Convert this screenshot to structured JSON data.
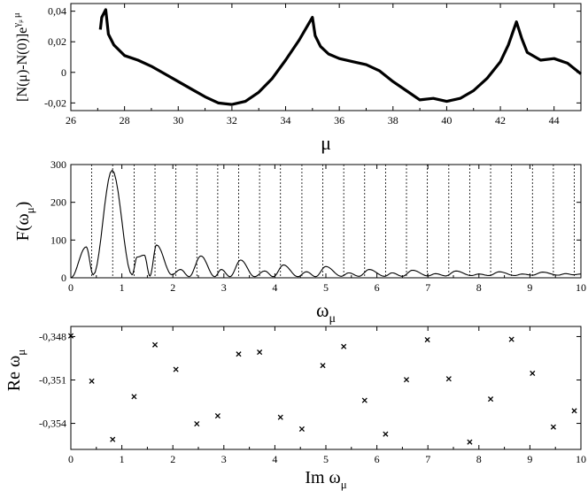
{
  "chart_data": [
    {
      "type": "line",
      "xlabel": "μ",
      "ylabel": "[N(μ)-N(0)]e",
      "ylabel_superscript": "γ",
      "ylabel_superscript_sub": "μ",
      "ylabel_superscript_tail": "μ",
      "xlim": [
        26,
        45
      ],
      "ylim": [
        -0.025,
        0.045
      ],
      "xticks": [
        26,
        28,
        30,
        32,
        34,
        36,
        38,
        40,
        42,
        44
      ],
      "yticks": [
        -0.02,
        0,
        0.02,
        0.04
      ],
      "ytick_labels": [
        "-0,02",
        "0",
        "0,02",
        "0,04"
      ],
      "series": [
        {
          "x": [
            27.1,
            27.15,
            27.3,
            27.4,
            27.6,
            28.0,
            28.5,
            29.0,
            29.5,
            30.0,
            30.5,
            31.0,
            31.5,
            32.0,
            32.5,
            33.0,
            33.5,
            34.0,
            34.5,
            35.0,
            35.1,
            35.3,
            35.6,
            36.0,
            36.5,
            37.0,
            37.5,
            38.0,
            38.5,
            39.0,
            39.5,
            40.0,
            40.5,
            41.0,
            41.5,
            42.0,
            42.3,
            42.6,
            42.8,
            43.0,
            43.5,
            44.0,
            44.5,
            45.0
          ],
          "y": [
            0.028,
            0.036,
            0.041,
            0.025,
            0.018,
            0.011,
            0.008,
            0.004,
            -0.001,
            -0.006,
            -0.011,
            -0.016,
            -0.02,
            -0.021,
            -0.019,
            -0.013,
            -0.004,
            0.008,
            0.021,
            0.036,
            0.024,
            0.017,
            0.012,
            0.009,
            0.007,
            0.005,
            0.001,
            -0.006,
            -0.012,
            -0.018,
            -0.017,
            -0.019,
            -0.017,
            -0.012,
            -0.004,
            0.007,
            0.018,
            0.033,
            0.022,
            0.013,
            0.008,
            0.009,
            0.006,
            -0.001
          ]
        }
      ]
    },
    {
      "type": "line",
      "xlabel": "ω",
      "xlabel_sub": "μ",
      "ylabel": "F(ω",
      "ylabel_sub": "μ",
      "ylabel_tail": ")",
      "xlim": [
        0,
        10
      ],
      "ylim": [
        0,
        300
      ],
      "xticks": [
        0,
        1,
        2,
        3,
        4,
        5,
        6,
        7,
        8,
        9,
        10
      ],
      "yticks": [
        0,
        100,
        200,
        300
      ],
      "vlines": [
        0.41,
        0.82,
        1.24,
        1.65,
        2.06,
        2.47,
        2.88,
        3.29,
        3.7,
        4.11,
        4.53,
        4.94,
        5.35,
        5.76,
        6.17,
        6.58,
        6.99,
        7.41,
        7.82,
        8.23,
        8.64,
        9.05,
        9.46,
        9.87
      ],
      "peaks": [
        {
          "x": 0.0,
          "y": 0
        },
        {
          "x": 0.3,
          "y": 82
        },
        {
          "x": 0.44,
          "y": 8
        },
        {
          "x": 0.81,
          "y": 285
        },
        {
          "x": 1.2,
          "y": 8
        },
        {
          "x": 1.3,
          "y": 55
        },
        {
          "x": 1.44,
          "y": 60
        },
        {
          "x": 1.55,
          "y": 5
        },
        {
          "x": 1.68,
          "y": 87
        },
        {
          "x": 1.98,
          "y": 8
        },
        {
          "x": 2.15,
          "y": 22
        },
        {
          "x": 2.32,
          "y": 3
        },
        {
          "x": 2.55,
          "y": 58
        },
        {
          "x": 2.82,
          "y": 3
        },
        {
          "x": 2.95,
          "y": 22
        },
        {
          "x": 3.12,
          "y": 3
        },
        {
          "x": 3.33,
          "y": 47
        },
        {
          "x": 3.6,
          "y": 3
        },
        {
          "x": 3.8,
          "y": 18
        },
        {
          "x": 3.97,
          "y": 3
        },
        {
          "x": 4.17,
          "y": 34
        },
        {
          "x": 4.45,
          "y": 3
        },
        {
          "x": 4.62,
          "y": 16
        },
        {
          "x": 4.8,
          "y": 3
        },
        {
          "x": 5.0,
          "y": 30
        },
        {
          "x": 5.3,
          "y": 4
        },
        {
          "x": 5.45,
          "y": 13
        },
        {
          "x": 5.65,
          "y": 4
        },
        {
          "x": 5.85,
          "y": 22
        },
        {
          "x": 6.15,
          "y": 4
        },
        {
          "x": 6.3,
          "y": 13
        },
        {
          "x": 6.5,
          "y": 4
        },
        {
          "x": 6.7,
          "y": 20
        },
        {
          "x": 7.0,
          "y": 5
        },
        {
          "x": 7.15,
          "y": 11
        },
        {
          "x": 7.35,
          "y": 5
        },
        {
          "x": 7.55,
          "y": 18
        },
        {
          "x": 7.85,
          "y": 6
        },
        {
          "x": 8.0,
          "y": 10
        },
        {
          "x": 8.2,
          "y": 6
        },
        {
          "x": 8.4,
          "y": 16
        },
        {
          "x": 8.7,
          "y": 6
        },
        {
          "x": 8.85,
          "y": 10
        },
        {
          "x": 9.05,
          "y": 7
        },
        {
          "x": 9.25,
          "y": 15
        },
        {
          "x": 9.55,
          "y": 7
        },
        {
          "x": 9.7,
          "y": 11
        },
        {
          "x": 9.85,
          "y": 8
        },
        {
          "x": 10.0,
          "y": 10
        }
      ]
    },
    {
      "type": "scatter",
      "xlabel": "Im ω",
      "xlabel_sub": "μ",
      "ylabel": "Re ω",
      "ylabel_sub": "μ",
      "xlim": [
        0,
        10
      ],
      "ylim": [
        -0.3558,
        -0.3473
      ],
      "xticks": [
        0,
        1,
        2,
        3,
        4,
        5,
        6,
        7,
        8,
        9,
        10
      ],
      "yticks": [
        -0.354,
        -0.351,
        -0.348
      ],
      "ytick_labels": [
        "-0,354",
        "-0,351",
        "-0,348"
      ],
      "x": [
        0.0,
        0.41,
        0.82,
        1.24,
        1.65,
        2.06,
        2.47,
        2.88,
        3.29,
        3.7,
        4.11,
        4.53,
        4.94,
        5.35,
        5.76,
        6.17,
        6.58,
        6.99,
        7.41,
        7.82,
        8.23,
        8.64,
        9.05,
        9.46,
        9.87
      ],
      "y": [
        -0.34795,
        -0.35108,
        -0.35511,
        -0.35215,
        -0.34857,
        -0.35027,
        -0.35403,
        -0.35348,
        -0.34921,
        -0.34908,
        -0.35358,
        -0.35439,
        -0.35,
        -0.34869,
        -0.35241,
        -0.35474,
        -0.35098,
        -0.34822,
        -0.35092,
        -0.35529,
        -0.35232,
        -0.34819,
        -0.35054,
        -0.35425,
        -0.35313
      ]
    }
  ]
}
